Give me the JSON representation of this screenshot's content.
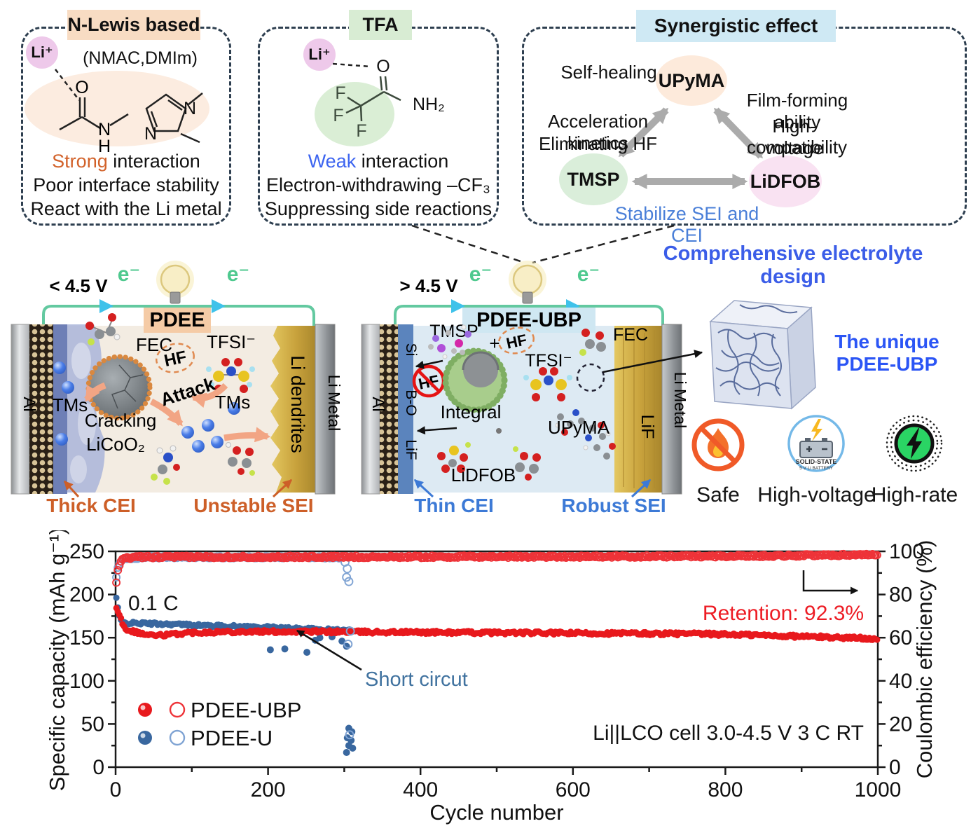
{
  "colors": {
    "accent_orange": "#d2622a",
    "accent_blue": "#3d7ad6",
    "design_blue": "#3b5de8",
    "unique_blue": "#2b55f5",
    "red_series": "#e8191d",
    "blue_series": "#39679f",
    "wire_green": "#63c9a0",
    "electron_green": "#4fc98f"
  },
  "top_boxes": {
    "nlewis": {
      "title": "N-Lewis based",
      "li": "Li⁺",
      "subtitle": "(NMAC,DMIm)",
      "atoms": {
        "o": "O",
        "n": "N",
        "h": "H",
        "ring_n1": "N",
        "ring_n2": "N"
      },
      "line1_accent": "Strong",
      "line1_rest": " interaction",
      "line2": "Poor interface stability",
      "line3": "React with the Li metal"
    },
    "tfa": {
      "title": "TFA",
      "li": "Li⁺",
      "atoms": {
        "o": "O",
        "f1": "F",
        "f2": "F",
        "f3": "F",
        "nh2": "NH₂"
      },
      "line1_accent": "Weak",
      "line1_rest": " interaction",
      "line2": "Electron-withdrawing –CF₃",
      "line3": "Suppressing side reactions"
    },
    "synergy": {
      "title": "Synergistic effect",
      "node_top": "UPyMA",
      "node_left": "TMSP",
      "node_right": "LiDFOB",
      "self_healing": "Self-healing",
      "film_forming": "Film-forming ability",
      "acceleration": "Acceleration kinetics",
      "eliminating": "Eliminating HF",
      "high_voltage": "High-voltage",
      "compatibility": "compatibility",
      "stabilize": "Stabilize SEI and CEI"
    }
  },
  "middle": {
    "design_label": "Comprehensive electrolyte design",
    "left_battery": {
      "voltage": "< 4.5 V",
      "electron_left": "e⁻",
      "electron_right": "e⁻",
      "name": "PDEE",
      "fec": "FEC",
      "hf": "HF",
      "tfsi": "TFSI⁻",
      "al": "Al",
      "tms_left": "TMs",
      "cracking": "Cracking",
      "licoo2": "LiCoO₂",
      "attack": "Attack",
      "tms_right": "TMs",
      "li_dendrites": "Li dendrites",
      "li_metal": "Li Metal",
      "cei": "Thick CEI",
      "sei": "Unstable SEI"
    },
    "right_battery": {
      "voltage": "> 4.5 V",
      "electron_left": "e⁻",
      "electron_right": "e⁻",
      "name": "PDEE-UBP",
      "tmsp": "TMSP",
      "plus": "+",
      "hf": "HF",
      "hf_blocked": "HF",
      "fec": "FEC",
      "tfsi": "TFSI⁻",
      "integral": "Integral",
      "upyma": "UPyMA",
      "lidfob": "LiDFOB",
      "al": "Al",
      "si": "Si",
      "bo": "B-O",
      "lif_left": "LiF",
      "lif_right": "LiF",
      "li_metal": "Li Metal",
      "cei": "Thin CEI",
      "sei": "Robust SEI"
    },
    "unique_line1": "The unique",
    "unique_line2": "PDEE-UBP",
    "icons": [
      {
        "name": "no-fire-icon",
        "label": "Safe"
      },
      {
        "name": "solid-state-battery-icon",
        "label": "High-voltage",
        "badge1": "SOLID-STATE",
        "badge2": "5 V Li BATTERY"
      },
      {
        "name": "lightning-icon",
        "label": "High-rate"
      }
    ]
  },
  "chart_data": {
    "type": "scatter",
    "xlabel": "Cycle number",
    "ylabel_left": "Specific capacity (mAh g⁻¹)",
    "ylabel_right": "Coulombic efficiency (%)",
    "xlim": [
      0,
      1000
    ],
    "ylim_left": [
      0,
      250
    ],
    "ylim_right": [
      0,
      100
    ],
    "xticks": [
      0,
      200,
      400,
      600,
      800,
      1000
    ],
    "yticks_left": [
      0,
      50,
      100,
      150,
      200,
      250
    ],
    "yticks_right": [
      0,
      20,
      40,
      60,
      80,
      100
    ],
    "x_minor_step": 100,
    "y_left_minor_step": 25,
    "y_right_minor_step": 10,
    "annotations": {
      "rate": "0.1 C",
      "short_circuit": "Short circut",
      "retention": "Retention: 92.3%",
      "cell": "Li||LCO cell 3.0-4.5 V 3 C RT"
    },
    "legend": [
      {
        "label": "PDEE-UBP",
        "filled_color": "#e8191d",
        "open_color": "#ee3338"
      },
      {
        "label": "PDEE-U",
        "filled_color": "#39679f",
        "open_color": "#7fa3d3"
      }
    ],
    "series": [
      {
        "name": "PDEE-U capacity",
        "axis": "left",
        "marker": "filled",
        "color": "#39679f",
        "step": 2,
        "jitter": 1.5,
        "r": 4.5,
        "trend": [
          [
            1,
            196
          ],
          [
            3,
            185
          ],
          [
            5,
            174
          ],
          [
            8,
            168
          ],
          [
            15,
            167
          ],
          [
            40,
            166.5
          ],
          [
            80,
            165.5
          ],
          [
            120,
            164
          ],
          [
            160,
            163
          ],
          [
            200,
            162
          ],
          [
            240,
            160.5
          ],
          [
            270,
            159.5
          ],
          [
            300,
            158.5
          ],
          [
            310,
            158
          ]
        ],
        "outliers": [
          [
            203,
            136
          ],
          [
            222,
            137
          ],
          [
            251,
            133
          ],
          [
            262,
            147
          ],
          [
            268,
            150
          ],
          [
            284,
            151
          ],
          [
            297,
            146
          ],
          [
            303,
            140
          ],
          [
            306,
            45
          ],
          [
            310,
            41
          ],
          [
            304,
            34
          ],
          [
            309,
            31
          ],
          [
            306,
            25
          ],
          [
            311,
            22
          ],
          [
            303,
            17
          ]
        ]
      },
      {
        "name": "PDEE-UBP capacity",
        "axis": "left",
        "marker": "filled",
        "color": "#e8191d",
        "step": 2,
        "jitter": 1.8,
        "r": 4.5,
        "trend": [
          [
            1,
            186
          ],
          [
            2,
            183
          ],
          [
            4,
            179
          ],
          [
            6,
            176
          ],
          [
            8,
            170
          ],
          [
            10,
            163
          ],
          [
            14,
            160
          ],
          [
            25,
            157
          ],
          [
            40,
            153.5
          ],
          [
            55,
            152.5
          ],
          [
            75,
            154
          ],
          [
            100,
            156
          ],
          [
            150,
            157
          ],
          [
            250,
            157
          ],
          [
            350,
            156.5
          ],
          [
            450,
            156
          ],
          [
            550,
            155.5
          ],
          [
            650,
            155
          ],
          [
            750,
            154.5
          ],
          [
            820,
            153.5
          ],
          [
            880,
            152
          ],
          [
            940,
            150.5
          ],
          [
            1000,
            149
          ]
        ],
        "outliers": []
      },
      {
        "name": "PDEE-U efficiency",
        "axis": "right",
        "marker": "open",
        "color": "#7fa3d3",
        "step": 2,
        "jitter": 0.45,
        "r": 5,
        "trend": [
          [
            1,
            88
          ],
          [
            3,
            92
          ],
          [
            6,
            95
          ],
          [
            12,
            96.6
          ],
          [
            40,
            97.2
          ],
          [
            100,
            97.3
          ],
          [
            200,
            97.3
          ],
          [
            298,
            97.2
          ]
        ],
        "outliers": [
          [
            301,
            95
          ],
          [
            304,
            92
          ],
          [
            303,
            88
          ],
          [
            306,
            86
          ],
          [
            308,
            63
          ],
          [
            305,
            57
          ],
          [
            307,
            15
          ]
        ]
      },
      {
        "name": "PDEE-UBP efficiency",
        "axis": "right",
        "marker": "open",
        "color": "#ee3338",
        "step": 2,
        "jitter": 0.5,
        "r": 5,
        "trend": [
          [
            1,
            86
          ],
          [
            2,
            89
          ],
          [
            4,
            93
          ],
          [
            7,
            95.5
          ],
          [
            12,
            96.8
          ],
          [
            30,
            97.3
          ],
          [
            100,
            97.4
          ],
          [
            300,
            97.4
          ],
          [
            500,
            97.5
          ],
          [
            700,
            97.6
          ],
          [
            850,
            97.9
          ],
          [
            950,
            98.3
          ],
          [
            1000,
            98.6
          ]
        ],
        "outliers": []
      }
    ]
  }
}
